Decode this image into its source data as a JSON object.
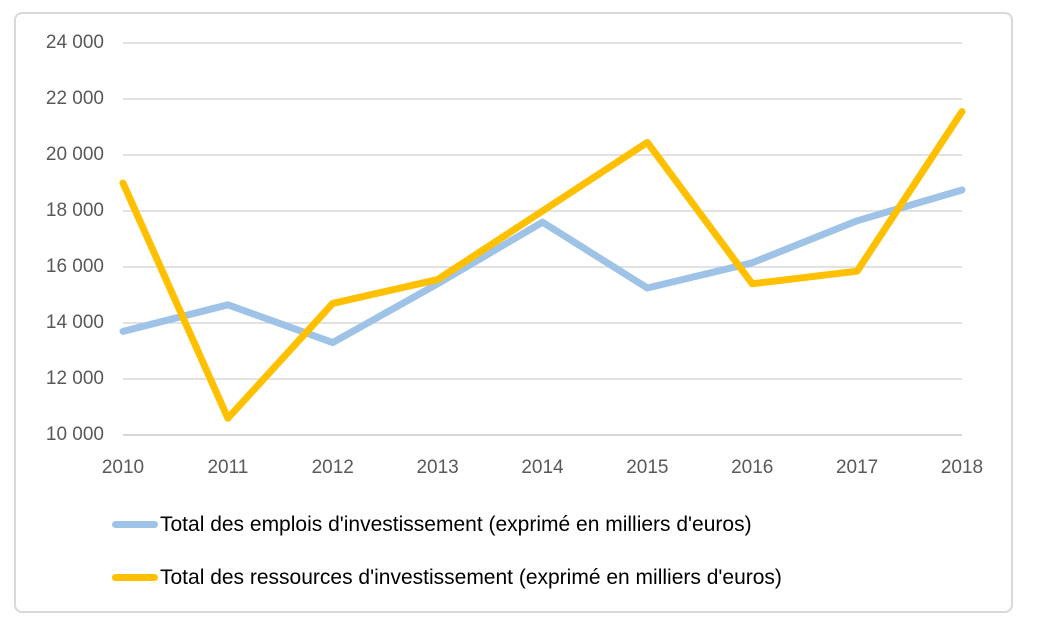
{
  "chart_data": {
    "type": "line",
    "title": "",
    "xlabel": "",
    "ylabel": "",
    "categories": [
      "2010",
      "2011",
      "2012",
      "2013",
      "2014",
      "2015",
      "2016",
      "2017",
      "2018"
    ],
    "series": [
      {
        "name": "Total des emplois d'investissement (exprimé en milliers d'euros)",
        "color": "#9FC3E7",
        "values": [
          13700,
          14650,
          13300,
          15400,
          17600,
          15250,
          16150,
          17650,
          18750
        ]
      },
      {
        "name": "Total des ressources d'investissement (exprimé en milliers d'euros)",
        "color": "#FFC000",
        "values": [
          19000,
          10600,
          14700,
          15550,
          18000,
          20450,
          15400,
          15850,
          21550
        ]
      }
    ],
    "ylim": [
      10000,
      24000
    ],
    "ytick_step": 2000,
    "ytick_labels": [
      "10 000",
      "12 000",
      "14 000",
      "16 000",
      "18 000",
      "20 000",
      "22 000",
      "24 000"
    ],
    "grid": "horizontal",
    "legend_position": "bottom-left"
  },
  "colors": {
    "grid": "#D9D9D9",
    "axis_line": "#CBCBCB",
    "frame_border": "#D9D9D9",
    "tick_text": "#595959",
    "legend_text": "#000000",
    "background": "#FFFFFF"
  }
}
